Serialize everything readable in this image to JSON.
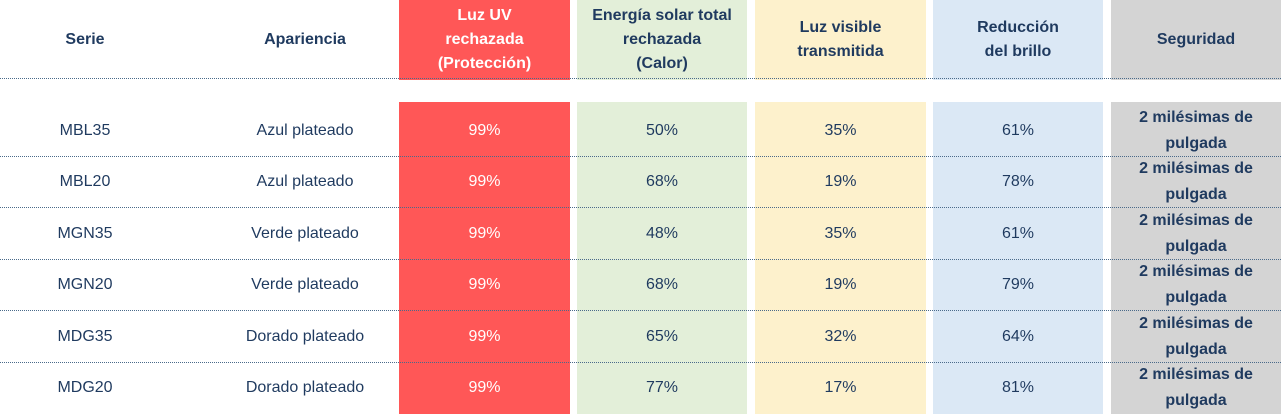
{
  "header": {
    "serie": "Serie",
    "apariencia": "Apariencia",
    "uv": "Luz UV\nrechazada\n(Protección)",
    "solar": "Energía solar total\nrechazada\n(Calor)",
    "visible": "Luz visible\ntransmitida",
    "brillo": "Reducción\ndel brillo",
    "seguridad": "Seguridad"
  },
  "rows": [
    {
      "serie": "MBL35",
      "apariencia": "Azul plateado",
      "uv": "99%",
      "solar": "50%",
      "visible": "35%",
      "brillo": "61%",
      "seguridad": "2 milésimas de\npulgada"
    },
    {
      "serie": "MBL20",
      "apariencia": "Azul plateado",
      "uv": "99%",
      "solar": "68%",
      "visible": "19%",
      "brillo": "78%",
      "seguridad": "2 milésimas de\npulgada"
    },
    {
      "serie": "MGN35",
      "apariencia": "Verde plateado",
      "uv": "99%",
      "solar": "48%",
      "visible": "35%",
      "brillo": "61%",
      "seguridad": "2 milésimas de\npulgada"
    },
    {
      "serie": "MGN20",
      "apariencia": "Verde plateado",
      "uv": "99%",
      "solar": "68%",
      "visible": "19%",
      "brillo": "79%",
      "seguridad": "2 milésimas de\npulgada"
    },
    {
      "serie": "MDG35",
      "apariencia": "Dorado plateado",
      "uv": "99%",
      "solar": "65%",
      "visible": "32%",
      "brillo": "64%",
      "seguridad": "2 milésimas de\npulgada"
    },
    {
      "serie": "MDG20",
      "apariencia": "Dorado plateado",
      "uv": "99%",
      "solar": "77%",
      "visible": "17%",
      "brillo": "81%",
      "seguridad": "2 milésimas de\npulgada"
    }
  ],
  "colors": {
    "uv": "#ff5757",
    "solar": "#e3efd9",
    "visible": "#fdf1cc",
    "brillo": "#dbe8f5",
    "seguridad": "#d4d4d4",
    "text": "#1f3a5f"
  }
}
